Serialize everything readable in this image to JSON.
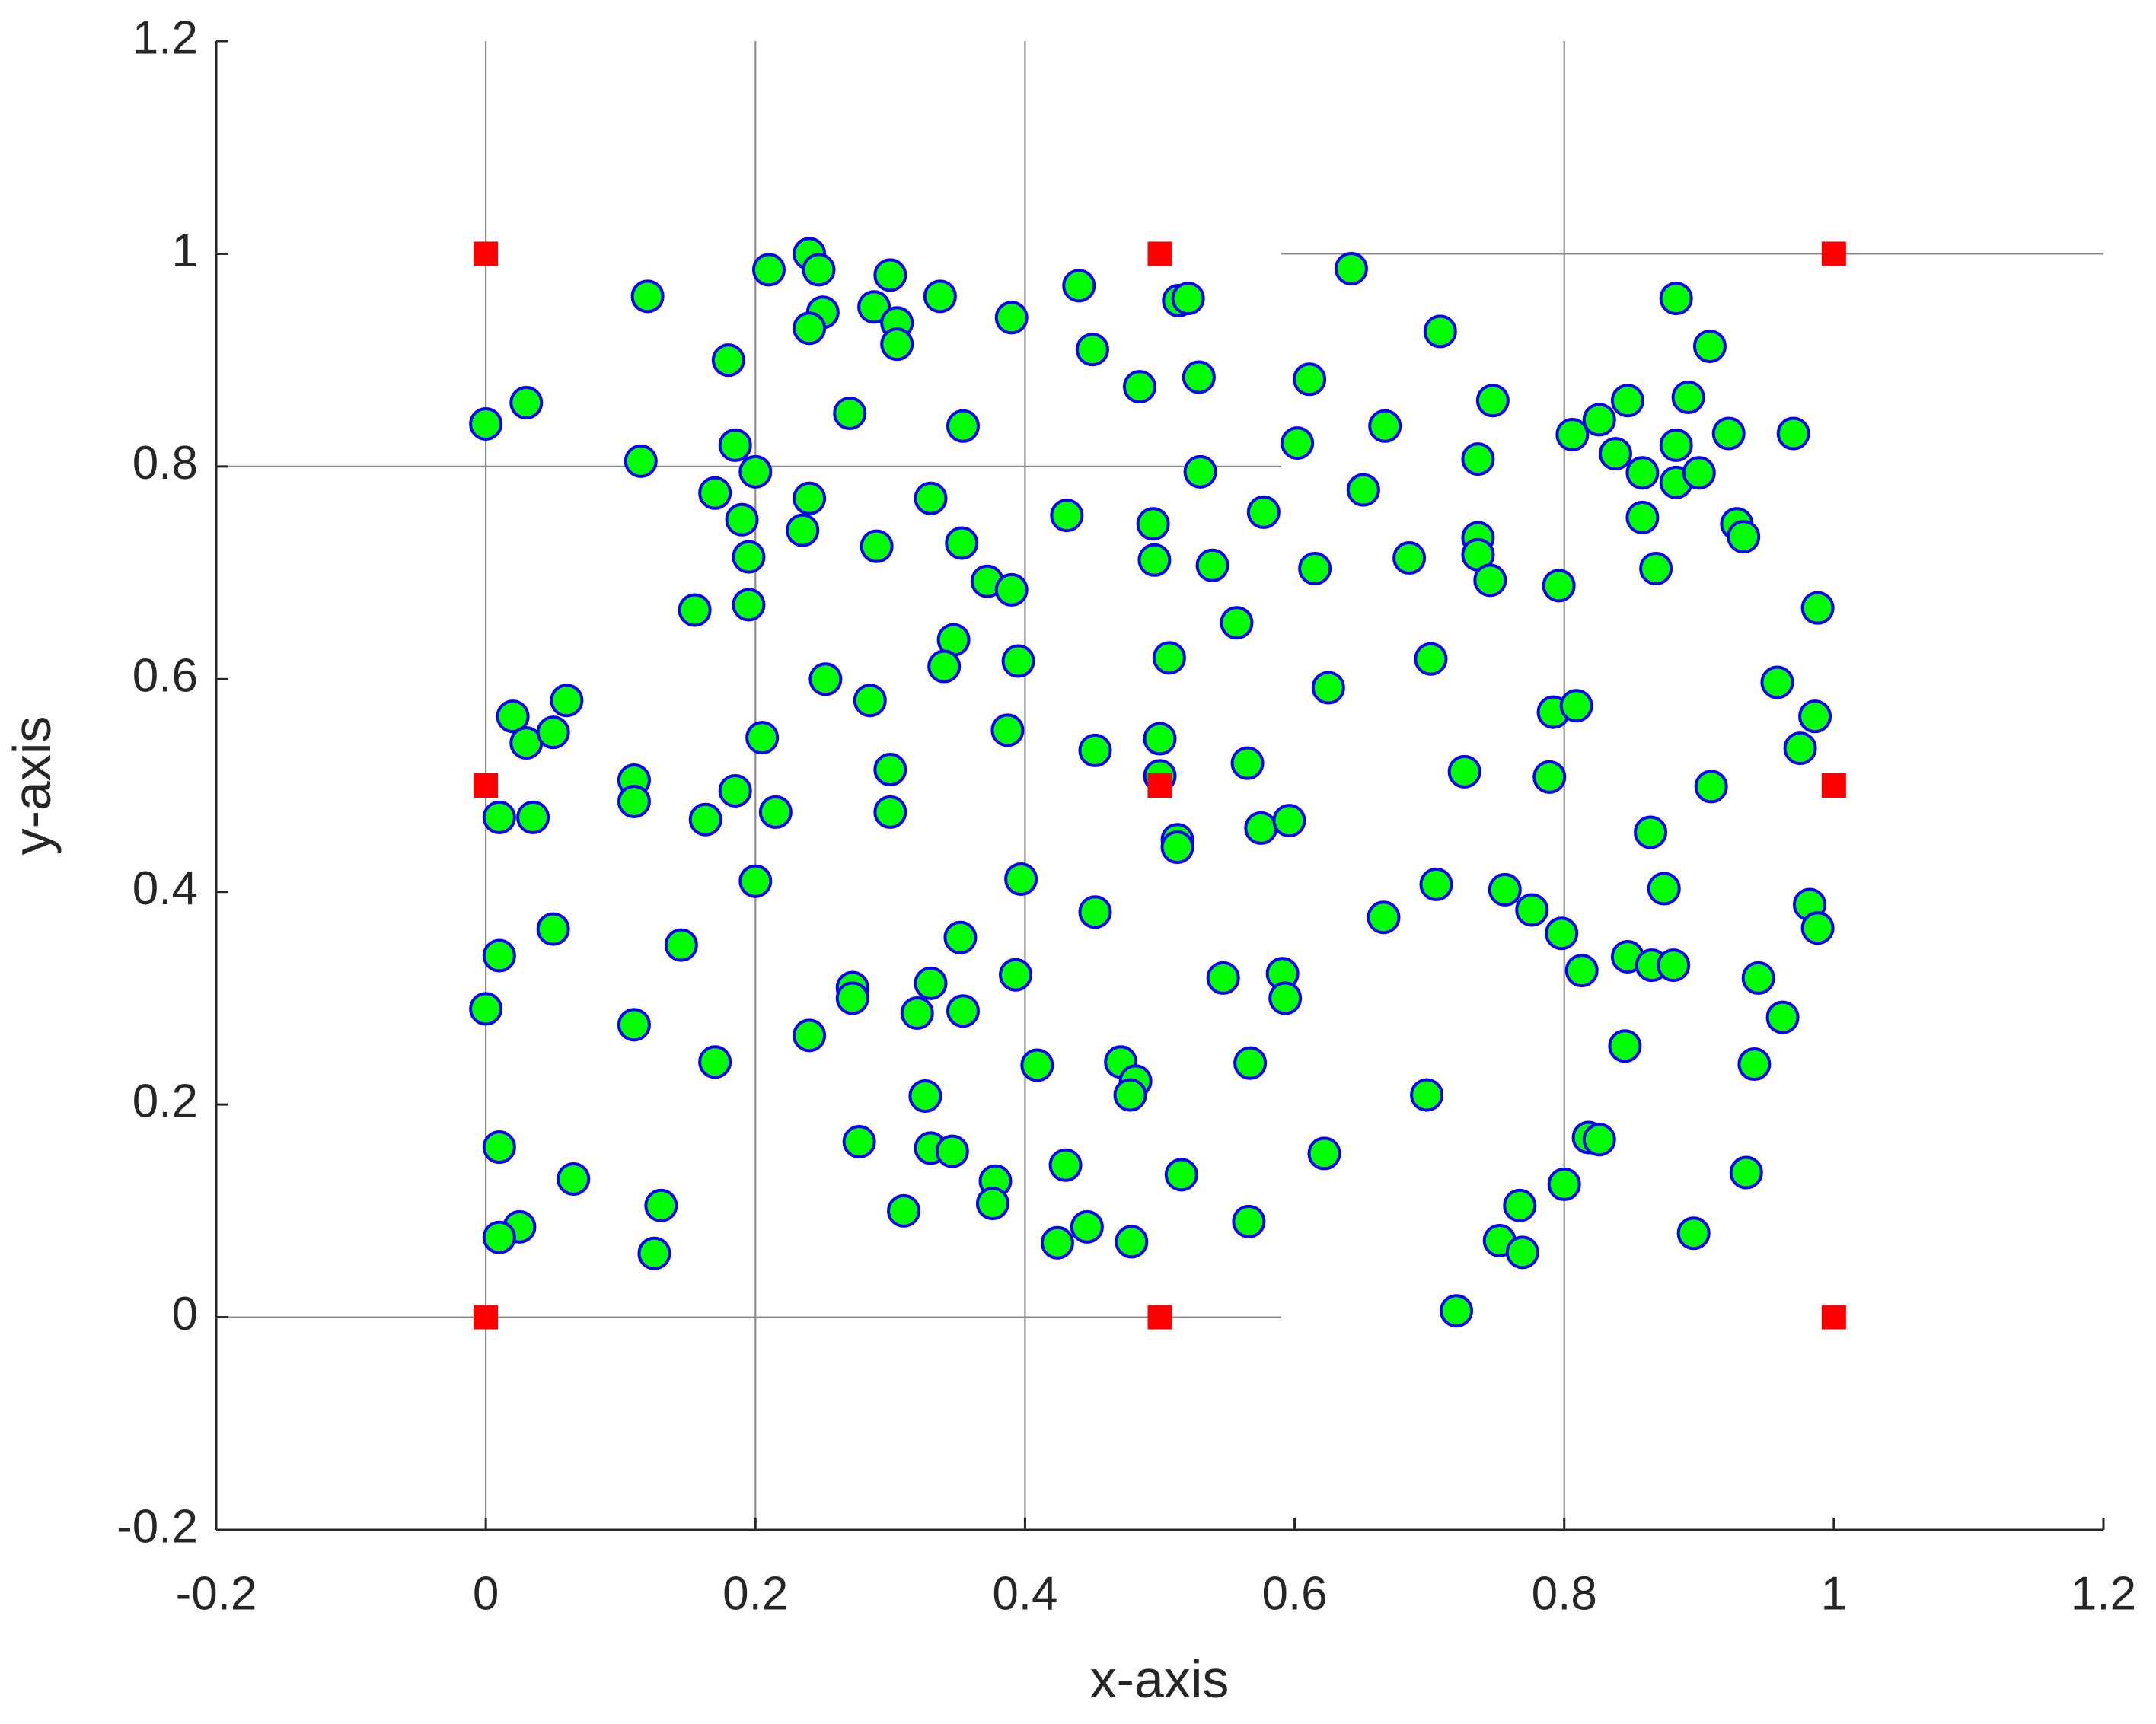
{
  "chart_data": {
    "type": "scatter",
    "x_label": "x-axis",
    "y_label": "y-axis",
    "xlim": [
      -0.2,
      1.2
    ],
    "ylim": [
      -0.2,
      1.2
    ],
    "xticks": [
      -0.2,
      0,
      0.2,
      0.4,
      0.6,
      0.8,
      1,
      1.2
    ],
    "yticks": [
      -0.2,
      0,
      0.2,
      0.4,
      0.6,
      0.8,
      1,
      1.2
    ],
    "series": [
      {
        "type": "line",
        "color": "#8c8c8c",
        "x": [
          0,
          0,
          null,
          0.2,
          0.2,
          null,
          0.4,
          0.4,
          null,
          0.8,
          0.8,
          null,
          -0.2,
          0.59,
          null,
          -0.2,
          0.59,
          null,
          0.59,
          1.2
        ],
        "y": [
          -0.2,
          1.2,
          null,
          -0.2,
          1.2,
          null,
          -0.2,
          1.2,
          null,
          -0.2,
          1.2,
          null,
          0.8,
          0.8,
          null,
          0,
          0,
          null,
          1,
          1
        ]
      },
      {
        "type": "scatter",
        "marker": "circle",
        "color": "#00ff00",
        "edgecolor": "#0000ff",
        "x": [
          0,
          0.03,
          0.02,
          0.03,
          0.06,
          0.05,
          0.01,
          0.035,
          0.05,
          0.01,
          0,
          0.01,
          0.065,
          0.025,
          0.01,
          0.12,
          0.115,
          0.11,
          0.11,
          0.145,
          0.11,
          0.13,
          0.125,
          0.18,
          0.185,
          0.17,
          0.19,
          0.195,
          0.195,
          0.155,
          0.2,
          0.205,
          0.185,
          0.163,
          0.215,
          0.2,
          0.17,
          0.21,
          0.24,
          0.247,
          0.25,
          0.24,
          0.24,
          0.235,
          0.252,
          0.24,
          0.27,
          0.3,
          0.288,
          0.305,
          0.305,
          0.29,
          0.285,
          0.3,
          0.3,
          0.272,
          0.272,
          0.277,
          0.31,
          0.337,
          0.354,
          0.33,
          0.353,
          0.372,
          0.39,
          0.347,
          0.34,
          0.395,
          0.387,
          0.397,
          0.352,
          0.33,
          0.32,
          0.354,
          0.326,
          0.33,
          0.346,
          0.378,
          0.376,
          0.393,
          0.409,
          0.39,
          0.44,
          0.45,
          0.431,
          0.452,
          0.452,
          0.43,
          0.424,
          0.446,
          0.479,
          0.471,
          0.482,
          0.478,
          0.485,
          0.495,
          0.496,
          0.514,
          0.521,
          0.529,
          0.53,
          0.539,
          0.507,
          0.5,
          0.5,
          0.513,
          0.513,
          0.547,
          0.516,
          0.557,
          0.565,
          0.575,
          0.577,
          0.596,
          0.591,
          0.593,
          0.567,
          0.566,
          0.602,
          0.611,
          0.615,
          0.625,
          0.622,
          0.642,
          0.651,
          0.667,
          0.666,
          0.685,
          0.708,
          0.701,
          0.705,
          0.698,
          0.726,
          0.72,
          0.747,
          0.736,
          0.736,
          0.736,
          0.745,
          0.756,
          0.776,
          0.767,
          0.752,
          0.769,
          0.796,
          0.792,
          0.809,
          0.789,
          0.798,
          0.813,
          0.8,
          0.818,
          0.826,
          0.806,
          0.826,
          0.847,
          0.838,
          0.858,
          0.858,
          0.868,
          0.883,
          0.892,
          0.883,
          0.883,
          0.9,
          0.908,
          0.864,
          0.874,
          0.847,
          0.865,
          0.881,
          0.845,
          0.909,
          0.896,
          0.928,
          0.933,
          0.922,
          0.97,
          0.988,
          0.958,
          0.986,
          0.975,
          0.982,
          0.988,
          0.944,
          0.962,
          0.941,
          0.935
        ],
        "y": [
          0.84,
          0.86,
          0.565,
          0.54,
          0.58,
          0.55,
          0.47,
          0.47,
          0.365,
          0.34,
          0.29,
          0.16,
          0.13,
          0.085,
          0.075,
          0.96,
          0.805,
          0.505,
          0.485,
          0.35,
          0.275,
          0.105,
          0.06,
          0.9,
          0.82,
          0.775,
          0.75,
          0.715,
          0.67,
          0.665,
          0.795,
          0.545,
          0.495,
          0.468,
          0.475,
          0.41,
          0.24,
          0.985,
          1.0,
          0.985,
          0.945,
          0.93,
          0.77,
          0.74,
          0.6,
          0.265,
          0.85,
          0.98,
          0.95,
          0.935,
          0.915,
          0.725,
          0.58,
          0.515,
          0.475,
          0.31,
          0.3,
          0.165,
          0.1,
          0.96,
          0.838,
          0.77,
          0.728,
          0.692,
          0.684,
          0.637,
          0.612,
          0.617,
          0.552,
          0.412,
          0.357,
          0.314,
          0.286,
          0.288,
          0.208,
          0.159,
          0.156,
          0.128,
          0.107,
          0.322,
          0.237,
          0.94,
          0.97,
          0.91,
          0.754,
          0.533,
          0.381,
          0.143,
          0.07,
          0.085,
          0.071,
          0.24,
          0.222,
          0.209,
          0.875,
          0.746,
          0.712,
          0.956,
          0.958,
          0.884,
          0.795,
          0.707,
          0.62,
          0.544,
          0.509,
          0.449,
          0.442,
          0.319,
          0.134,
          0.653,
          0.521,
          0.46,
          0.757,
          0.467,
          0.323,
          0.3,
          0.239,
          0.09,
          0.822,
          0.882,
          0.704,
          0.592,
          0.154,
          0.986,
          0.778,
          0.838,
          0.376,
          0.714,
          0.927,
          0.619,
          0.407,
          0.209,
          0.513,
          0.006,
          0.862,
          0.807,
          0.733,
          0.717,
          0.693,
          0.402,
          0.383,
          0.105,
          0.072,
          0.061,
          0.688,
          0.569,
          0.575,
          0.508,
          0.361,
          0.326,
          0.125,
          0.169,
          0.167,
          0.83,
          0.844,
          0.862,
          0.812,
          0.794,
          0.752,
          0.704,
          0.958,
          0.865,
          0.82,
          0.785,
          0.794,
          0.913,
          0.456,
          0.403,
          0.339,
          0.331,
          0.331,
          0.255,
          0.499,
          0.079,
          0.746,
          0.734,
          0.831,
          0.831,
          0.667,
          0.597,
          0.565,
          0.535,
          0.388,
          0.366,
          0.319,
          0.282,
          0.238,
          0.136
        ]
      },
      {
        "type": "scatter",
        "marker": "square",
        "color": "#ff0000",
        "x": [
          0,
          0.5,
          1,
          0,
          0.5,
          1,
          0,
          0.5,
          1
        ],
        "y": [
          1,
          1,
          1,
          0.5,
          0.5,
          0.5,
          0,
          0,
          0
        ]
      }
    ]
  }
}
